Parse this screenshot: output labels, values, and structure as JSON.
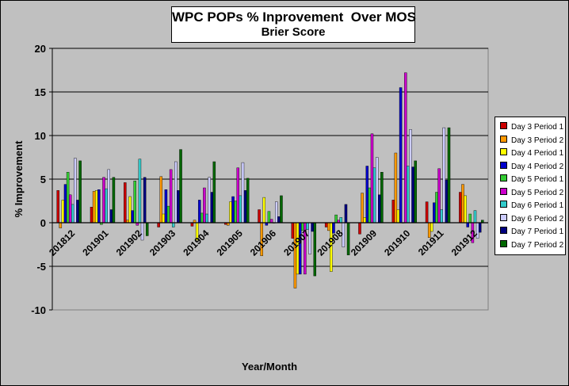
{
  "chart_data": {
    "type": "bar",
    "title": "WPC POPs % Inprovement  Over MOS",
    "subtitle": "Brier Score",
    "xlabel": "Year/Month",
    "ylabel": "% Improvement",
    "ylim": [
      -10,
      20
    ],
    "yticks": [
      -10,
      -5,
      0,
      5,
      10,
      15,
      20
    ],
    "grid": "horizontal",
    "legend_position": "right",
    "categories": [
      "201812",
      "201901",
      "201902",
      "201903",
      "201904",
      "201905",
      "201906",
      "201907",
      "201908",
      "201909",
      "201910",
      "201911",
      "201912"
    ],
    "series": [
      {
        "name": "Day 3 Period 1",
        "color": "#cc0000",
        "values": [
          3.7,
          1.8,
          4.6,
          -0.5,
          -0.4,
          -0.2,
          1.5,
          -1.8,
          -0.5,
          -1.3,
          2.6,
          2.4,
          3.5
        ]
      },
      {
        "name": "Day 3 Period 2",
        "color": "#ff9900",
        "values": [
          -0.6,
          3.6,
          0.3,
          5.3,
          0.3,
          -0.3,
          -3.8,
          -7.5,
          -0.9,
          3.4,
          8.0,
          -1.7,
          4.4
        ]
      },
      {
        "name": "Day 4 Period 1",
        "color": "#ffff00",
        "values": [
          2.6,
          3.7,
          3.0,
          1.0,
          -2.0,
          2.4,
          2.9,
          -5.9,
          -5.6,
          0.6,
          1.5,
          -1.0,
          3.1
        ]
      },
      {
        "name": "Day 4 Period 2",
        "color": "#0000cc",
        "values": [
          4.4,
          3.8,
          1.4,
          3.8,
          2.6,
          3.0,
          -0.3,
          -5.9,
          -1.2,
          6.5,
          15.5,
          2.3,
          -0.5
        ]
      },
      {
        "name": "Day 5 Period 1",
        "color": "#33cc33",
        "values": [
          5.8,
          -0.2,
          4.8,
          1.9,
          1.1,
          2.5,
          1.3,
          -0.9,
          0.9,
          4.0,
          0.0,
          3.5,
          1.0
        ]
      },
      {
        "name": "Day 5 Period 2",
        "color": "#cc00cc",
        "values": [
          3.2,
          5.2,
          -0.3,
          6.1,
          4.0,
          6.3,
          0.4,
          -5.9,
          0.3,
          10.2,
          17.2,
          6.2,
          -2.3
        ]
      },
      {
        "name": "Day 6 Period 1",
        "color": "#33cccc",
        "values": [
          2.1,
          3.9,
          7.3,
          -0.5,
          1.0,
          3.1,
          0.0,
          -0.8,
          0.6,
          6.3,
          6.5,
          1.5,
          1.4
        ]
      },
      {
        "name": "Day 6 Period 2",
        "color": "#ccccff",
        "values": [
          7.4,
          6.1,
          -2.0,
          7.0,
          5.2,
          6.9,
          2.4,
          -3.6,
          -2.8,
          7.5,
          10.7,
          10.9,
          -1.8
        ]
      },
      {
        "name": "Day 7 Period 1",
        "color": "#000080",
        "values": [
          2.6,
          1.5,
          5.2,
          3.7,
          3.5,
          3.7,
          0.7,
          -1.0,
          2.1,
          3.2,
          6.4,
          4.9,
          -1.1
        ]
      },
      {
        "name": "Day 7 Period 2",
        "color": "#006600",
        "values": [
          7.1,
          5.2,
          -1.5,
          8.4,
          7.0,
          5.1,
          3.1,
          -6.1,
          -3.7,
          5.8,
          7.1,
          10.9,
          0.3
        ]
      }
    ]
  }
}
